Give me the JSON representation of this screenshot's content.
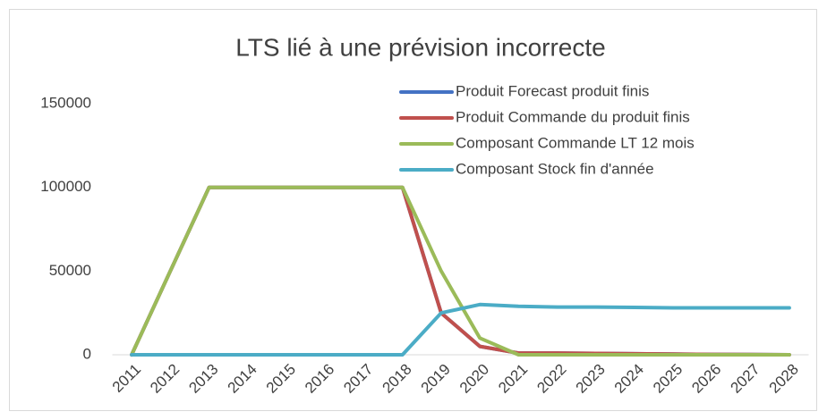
{
  "chart_data": {
    "type": "line",
    "title": "LTS lié à une prévision incorrecte",
    "categories": [
      "2011",
      "2012",
      "2013",
      "2014",
      "2015",
      "2016",
      "2017",
      "2018",
      "2019",
      "2020",
      "2021",
      "2022",
      "2023",
      "2024",
      "2025",
      "2026",
      "2027",
      "2028"
    ],
    "series": [
      {
        "name": "Produit Forecast produit finis",
        "color": "#4472c4",
        "values": [
          0,
          50000,
          100000,
          100000,
          100000,
          100000,
          100000,
          100000,
          25000,
          5000,
          1000,
          1000,
          800,
          600,
          400,
          200,
          100,
          0
        ]
      },
      {
        "name": "Produit Commande du produit finis",
        "color": "#c0504d",
        "values": [
          0,
          50000,
          100000,
          100000,
          100000,
          100000,
          100000,
          100000,
          25000,
          5000,
          1000,
          1000,
          800,
          600,
          400,
          200,
          100,
          0
        ]
      },
      {
        "name": "Composant Commande  LT 12 mois",
        "color": "#9bbb59",
        "values": [
          0,
          50000,
          100000,
          100000,
          100000,
          100000,
          100000,
          100000,
          50000,
          10000,
          0,
          0,
          0,
          0,
          0,
          0,
          0,
          0
        ]
      },
      {
        "name": "Composant Stock fin d'année",
        "color": "#4bacc6",
        "values": [
          0,
          0,
          0,
          0,
          0,
          0,
          0,
          0,
          25000,
          30000,
          29000,
          28500,
          28500,
          28300,
          28000,
          28000,
          28000,
          28000
        ]
      }
    ],
    "ylim": [
      0,
      150000
    ],
    "yticks": [
      0,
      50000,
      100000,
      150000
    ],
    "grid": false
  }
}
